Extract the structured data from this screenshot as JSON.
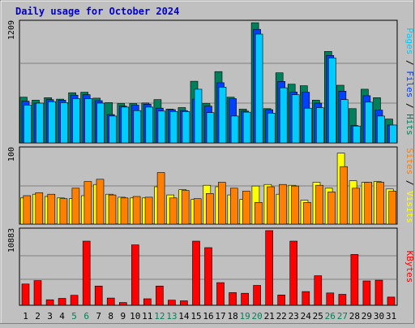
{
  "chart_data": {
    "type": "bar",
    "title": "Daily usage for October 2024",
    "title_color": "#0000cc",
    "categories": [
      "1",
      "2",
      "3",
      "4",
      "5",
      "6",
      "7",
      "8",
      "9",
      "10",
      "11",
      "12",
      "13",
      "14",
      "15",
      "16",
      "17",
      "18",
      "19",
      "20",
      "21",
      "22",
      "23",
      "24",
      "25",
      "26",
      "27",
      "28",
      "29",
      "30",
      "31"
    ],
    "weekend_days": [
      "5",
      "6",
      "12",
      "13",
      "19",
      "20",
      "26",
      "27"
    ],
    "weekend_color": "#00805a",
    "weekday_color": "#000000",
    "panels": [
      {
        "id": "hits-panel",
        "ymax": 1209,
        "ymax_label": "1209",
        "series": [
          {
            "name": "Hits",
            "color": "#00805a",
            "values": [
              460,
              430,
              455,
              440,
              505,
              510,
              450,
              405,
              395,
              395,
              402,
              435,
              340,
              355,
              620,
              395,
              717,
              460,
              340,
              1209,
              345,
              705,
              591,
              575,
              430,
              920,
              580,
              345,
              540,
              455,
              240
            ]
          },
          {
            "name": "Files",
            "color": "#0040ff",
            "values": [
              420,
              400,
              435,
              430,
              480,
              485,
              425,
              285,
              370,
              380,
              390,
              350,
              335,
              325,
              440,
              370,
              605,
              445,
              320,
              1142,
              335,
              618,
              512,
              510,
              400,
              880,
              520,
              175,
              475,
              330,
              180
            ]
          },
          {
            "name": "Pages",
            "color": "#00ccff",
            "values": [
              380,
              400,
              415,
              405,
              445,
              445,
              400,
              270,
              360,
              325,
              360,
              320,
              315,
              315,
              540,
              305,
              560,
              270,
              310,
              1095,
              300,
              555,
              485,
              350,
              355,
              855,
              435,
              170,
              410,
              270,
              180
            ]
          }
        ]
      },
      {
        "id": "visits-panel",
        "ymax": 100,
        "ymax_label": "100",
        "series": [
          {
            "name": "Visits",
            "color": "#ffff00",
            "values": [
              35,
              40,
              37,
              35,
              34,
              38,
              53,
              40,
              36,
              35,
              35,
              50,
              39,
              46,
              33,
              52,
              50,
              39,
              33,
              51,
              53,
              40,
              52,
              32,
              56,
              48,
              95,
              58,
              56,
              57,
              47
            ]
          },
          {
            "name": "Sites",
            "color": "#ff8000",
            "values": [
              38,
              42,
              40,
              34,
              48,
              57,
              60,
              39,
              35,
              37,
              36,
              69,
              35,
              45,
              34,
              41,
              56,
              48,
              44,
              29,
              50,
              53,
              51,
              29,
              52,
              43,
              77,
              48,
              56,
              56,
              44
            ]
          }
        ]
      },
      {
        "id": "kbytes-panel",
        "ymax": 10883,
        "ymax_label": "10883",
        "series": [
          {
            "name": "KBytes",
            "color": "#ff0000",
            "values": [
              3100,
              3600,
              800,
              1000,
              1450,
              9350,
              2800,
              1050,
              400,
              8800,
              950,
              2800,
              750,
              650,
              9350,
              8400,
              3300,
              1850,
              1750,
              2900,
              10883,
              1500,
              9350,
              2000,
              4300,
              1800,
              1600,
              7400,
              3550,
              3650,
              1200
            ]
          }
        ]
      }
    ],
    "side_labels": [
      {
        "parts": [
          {
            "text": "Pages",
            "color": "#00ccff"
          },
          {
            "text": " / ",
            "color": "#000000"
          },
          {
            "text": "Files",
            "color": "#0040ff"
          },
          {
            "text": " / ",
            "color": "#000000"
          },
          {
            "text": "Hits",
            "color": "#00805a"
          }
        ]
      },
      {
        "parts": [
          {
            "text": "Sites",
            "color": "#ff8000"
          },
          {
            "text": " / ",
            "color": "#000000"
          },
          {
            "text": "Visits",
            "color": "#ffff00"
          }
        ]
      },
      {
        "parts": [
          {
            "text": "KBytes",
            "color": "#ff0000"
          }
        ]
      }
    ]
  }
}
